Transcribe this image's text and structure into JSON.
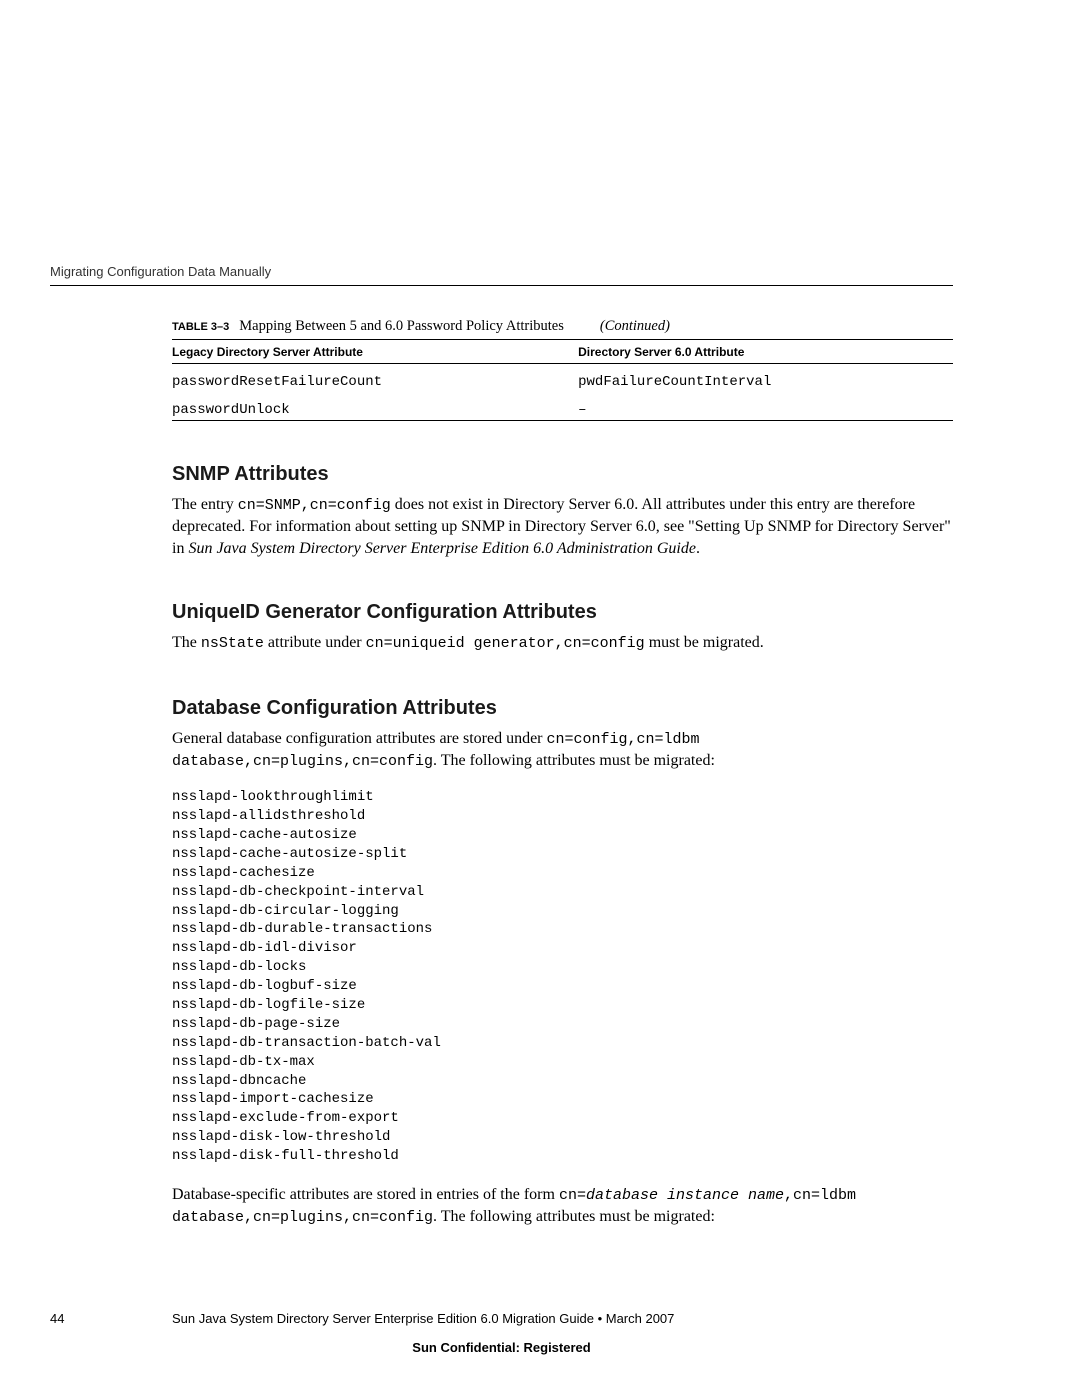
{
  "running_head": "Migrating Configuration Data Manually",
  "table": {
    "label": "TABLE 3–3",
    "title": "Mapping Between 5 and 6.0 Password Policy Attributes",
    "continued": "(Continued)",
    "col1": "Legacy Directory Server Attribute",
    "col2": "Directory Server 6.0 Attribute",
    "rows": [
      {
        "c1": "passwordResetFailureCount",
        "c2": "pwdFailureCountInterval"
      },
      {
        "c1": "passwordUnlock",
        "c2": "–"
      }
    ]
  },
  "snmp": {
    "heading": "SNMP Attributes",
    "pre": "The entry ",
    "code": "cn=SNMP,cn=config",
    "post1": " does not exist in Directory Server 6.0. All attributes under this entry are therefore deprecated. For information about setting up SNMP in Directory Server 6.0, see \"Setting Up SNMP for Directory Server\" in ",
    "ital": "Sun Java System Directory Server Enterprise Edition 6.0 Administration Guide",
    "post2": "."
  },
  "uid": {
    "heading": "UniqueID Generator Configuration Attributes",
    "pre": "The ",
    "code1": "nsState",
    "mid": " attribute under ",
    "code2": "cn=uniqueid generator,cn=config",
    "post": " must be migrated."
  },
  "db": {
    "heading": "Database Configuration Attributes",
    "p1_pre": "General database configuration attributes are stored under ",
    "p1_code": "cn=config,cn=ldbm database,cn=plugins,cn=config",
    "p1_post": ". The following attributes must be migrated:",
    "attrs": [
      "nsslapd-lookthroughlimit",
      "nsslapd-allidsthreshold",
      "nsslapd-cache-autosize",
      "nsslapd-cache-autosize-split",
      "nsslapd-cachesize",
      "nsslapd-db-checkpoint-interval",
      "nsslapd-db-circular-logging",
      "nsslapd-db-durable-transactions",
      "nsslapd-db-idl-divisor",
      "nsslapd-db-locks",
      "nsslapd-db-logbuf-size",
      "nsslapd-db-logfile-size",
      "nsslapd-db-page-size",
      "nsslapd-db-transaction-batch-val",
      "nsslapd-db-tx-max",
      "nsslapd-dbncache",
      "nsslapd-import-cachesize",
      "nsslapd-exclude-from-export",
      "nsslapd-disk-low-threshold",
      "nsslapd-disk-full-threshold"
    ],
    "p2_pre": "Database-specific attributes are stored in entries of the form ",
    "p2_code1": "cn=",
    "p2_ital": "database instance name",
    "p2_code2": ",cn=ldbm database,cn=plugins,cn=config",
    "p2_post": ". The following attributes must be migrated:"
  },
  "footer": {
    "page": "44",
    "text": "Sun Java System Directory Server Enterprise Edition 6.0 Migration Guide  •  March 2007",
    "confidential": "Sun Confidential: Registered"
  }
}
